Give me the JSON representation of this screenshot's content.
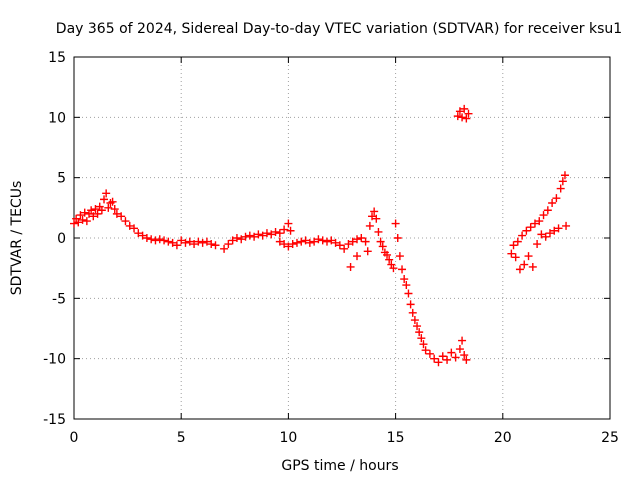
{
  "chart_data": {
    "type": "scatter",
    "title": "Day 365 of 2024, Sidereal Day-to-day VTEC variation (SDTVAR) for receiver ksu1",
    "xlabel": "GPS time / hours",
    "ylabel": "SDTVAR / TECUs",
    "xlim": [
      0,
      25
    ],
    "ylim": [
      -15,
      15
    ],
    "x_ticks": [
      0,
      5,
      10,
      15,
      20,
      25
    ],
    "y_ticks": [
      -15,
      -10,
      -5,
      0,
      5,
      10,
      15
    ],
    "grid": true,
    "marker": "+",
    "series": [
      {
        "name": "ksu1",
        "color": "#ff0000",
        "points": [
          [
            0.0,
            1.2
          ],
          [
            0.1,
            1.6
          ],
          [
            0.2,
            1.3
          ],
          [
            0.3,
            1.9
          ],
          [
            0.4,
            1.5
          ],
          [
            0.5,
            2.1
          ],
          [
            0.6,
            1.4
          ],
          [
            0.7,
            2.0
          ],
          [
            0.8,
            2.3
          ],
          [
            0.9,
            1.8
          ],
          [
            1.0,
            2.4
          ],
          [
            1.1,
            2.0
          ],
          [
            1.2,
            2.6
          ],
          [
            1.3,
            2.3
          ],
          [
            1.4,
            3.2
          ],
          [
            1.5,
            3.7
          ],
          [
            1.6,
            2.5
          ],
          [
            1.7,
            2.9
          ],
          [
            1.8,
            3.0
          ],
          [
            1.9,
            2.4
          ],
          [
            2.0,
            2.0
          ],
          [
            2.2,
            1.8
          ],
          [
            2.4,
            1.4
          ],
          [
            2.6,
            1.0
          ],
          [
            2.8,
            0.8
          ],
          [
            3.0,
            0.4
          ],
          [
            3.2,
            0.2
          ],
          [
            3.4,
            0.0
          ],
          [
            3.6,
            -0.1
          ],
          [
            3.8,
            -0.2
          ],
          [
            4.0,
            -0.1
          ],
          [
            4.2,
            -0.2
          ],
          [
            4.4,
            -0.3
          ],
          [
            4.6,
            -0.4
          ],
          [
            4.8,
            -0.6
          ],
          [
            5.0,
            -0.2
          ],
          [
            5.2,
            -0.4
          ],
          [
            5.4,
            -0.3
          ],
          [
            5.6,
            -0.5
          ],
          [
            5.8,
            -0.3
          ],
          [
            6.0,
            -0.4
          ],
          [
            6.2,
            -0.3
          ],
          [
            6.4,
            -0.5
          ],
          [
            6.6,
            -0.6
          ],
          [
            7.0,
            -0.9
          ],
          [
            7.2,
            -0.5
          ],
          [
            7.4,
            -0.2
          ],
          [
            7.6,
            0.0
          ],
          [
            7.8,
            -0.1
          ],
          [
            8.0,
            0.1
          ],
          [
            8.2,
            0.2
          ],
          [
            8.4,
            0.1
          ],
          [
            8.6,
            0.3
          ],
          [
            8.8,
            0.2
          ],
          [
            9.0,
            0.4
          ],
          [
            9.2,
            0.3
          ],
          [
            9.4,
            0.5
          ],
          [
            9.6,
            0.4
          ],
          [
            9.8,
            0.7
          ],
          [
            10.0,
            1.2
          ],
          [
            10.1,
            0.6
          ],
          [
            9.6,
            -0.3
          ],
          [
            9.8,
            -0.5
          ],
          [
            10.0,
            -0.7
          ],
          [
            10.2,
            -0.5
          ],
          [
            10.4,
            -0.4
          ],
          [
            10.6,
            -0.3
          ],
          [
            10.8,
            -0.2
          ],
          [
            11.0,
            -0.4
          ],
          [
            11.2,
            -0.3
          ],
          [
            11.4,
            -0.1
          ],
          [
            11.6,
            -0.2
          ],
          [
            11.8,
            -0.3
          ],
          [
            12.0,
            -0.2
          ],
          [
            12.2,
            -0.4
          ],
          [
            12.4,
            -0.6
          ],
          [
            12.6,
            -0.9
          ],
          [
            12.8,
            -0.5
          ],
          [
            13.0,
            -0.3
          ],
          [
            13.2,
            -0.1
          ],
          [
            13.4,
            0.0
          ],
          [
            13.6,
            -0.3
          ],
          [
            13.7,
            -1.1
          ],
          [
            13.2,
            -1.5
          ],
          [
            12.9,
            -2.4
          ],
          [
            13.8,
            1.0
          ],
          [
            13.9,
            1.8
          ],
          [
            14.0,
            2.2
          ],
          [
            14.1,
            1.6
          ],
          [
            14.2,
            0.5
          ],
          [
            14.3,
            -0.3
          ],
          [
            14.4,
            -0.7
          ],
          [
            14.5,
            -1.2
          ],
          [
            14.6,
            -1.4
          ],
          [
            14.7,
            -1.8
          ],
          [
            14.8,
            -2.2
          ],
          [
            14.9,
            -2.5
          ],
          [
            15.0,
            1.2
          ],
          [
            15.1,
            0.0
          ],
          [
            15.2,
            -1.5
          ],
          [
            15.3,
            -2.6
          ],
          [
            15.4,
            -3.4
          ],
          [
            15.5,
            -3.9
          ],
          [
            15.6,
            -4.6
          ],
          [
            15.7,
            -5.5
          ],
          [
            15.8,
            -6.2
          ],
          [
            15.9,
            -6.8
          ],
          [
            16.0,
            -7.3
          ],
          [
            16.1,
            -7.8
          ],
          [
            16.2,
            -8.3
          ],
          [
            16.3,
            -8.8
          ],
          [
            16.4,
            -9.3
          ],
          [
            16.6,
            -9.6
          ],
          [
            16.8,
            -10.0
          ],
          [
            17.0,
            -10.3
          ],
          [
            17.2,
            -9.8
          ],
          [
            17.4,
            -10.1
          ],
          [
            17.6,
            -9.5
          ],
          [
            17.8,
            -9.9
          ],
          [
            18.0,
            -9.2
          ],
          [
            18.1,
            -8.5
          ],
          [
            18.2,
            -9.7
          ],
          [
            18.3,
            -10.1
          ],
          [
            17.9,
            10.1
          ],
          [
            18.0,
            10.5
          ],
          [
            18.1,
            10.0
          ],
          [
            18.2,
            10.7
          ],
          [
            18.3,
            9.9
          ],
          [
            18.4,
            10.3
          ],
          [
            20.4,
            -1.3
          ],
          [
            20.5,
            -0.6
          ],
          [
            20.6,
            -1.6
          ],
          [
            20.7,
            -0.3
          ],
          [
            20.8,
            -2.6
          ],
          [
            20.9,
            0.2
          ],
          [
            21.0,
            -2.2
          ],
          [
            21.1,
            0.6
          ],
          [
            21.2,
            -1.5
          ],
          [
            21.3,
            0.9
          ],
          [
            21.4,
            -2.4
          ],
          [
            21.5,
            1.2
          ],
          [
            21.6,
            -0.5
          ],
          [
            21.7,
            1.4
          ],
          [
            21.8,
            0.3
          ],
          [
            21.9,
            1.9
          ],
          [
            22.0,
            0.1
          ],
          [
            22.1,
            2.3
          ],
          [
            22.2,
            0.4
          ],
          [
            22.3,
            2.9
          ],
          [
            22.4,
            0.6
          ],
          [
            22.5,
            3.3
          ],
          [
            22.6,
            0.8
          ],
          [
            22.7,
            4.1
          ],
          [
            22.8,
            4.7
          ],
          [
            22.9,
            5.2
          ],
          [
            22.95,
            1.0
          ]
        ]
      }
    ]
  }
}
